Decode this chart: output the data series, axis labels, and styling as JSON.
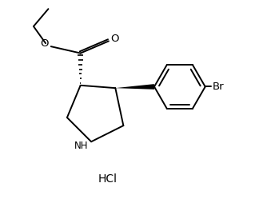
{
  "background_color": "#ffffff",
  "line_color": "#000000",
  "lw": 1.4,
  "text_color": "#000000",
  "HCl_label": "HCl",
  "Br_label": "Br",
  "O_label": "O",
  "NH_label": "NH"
}
